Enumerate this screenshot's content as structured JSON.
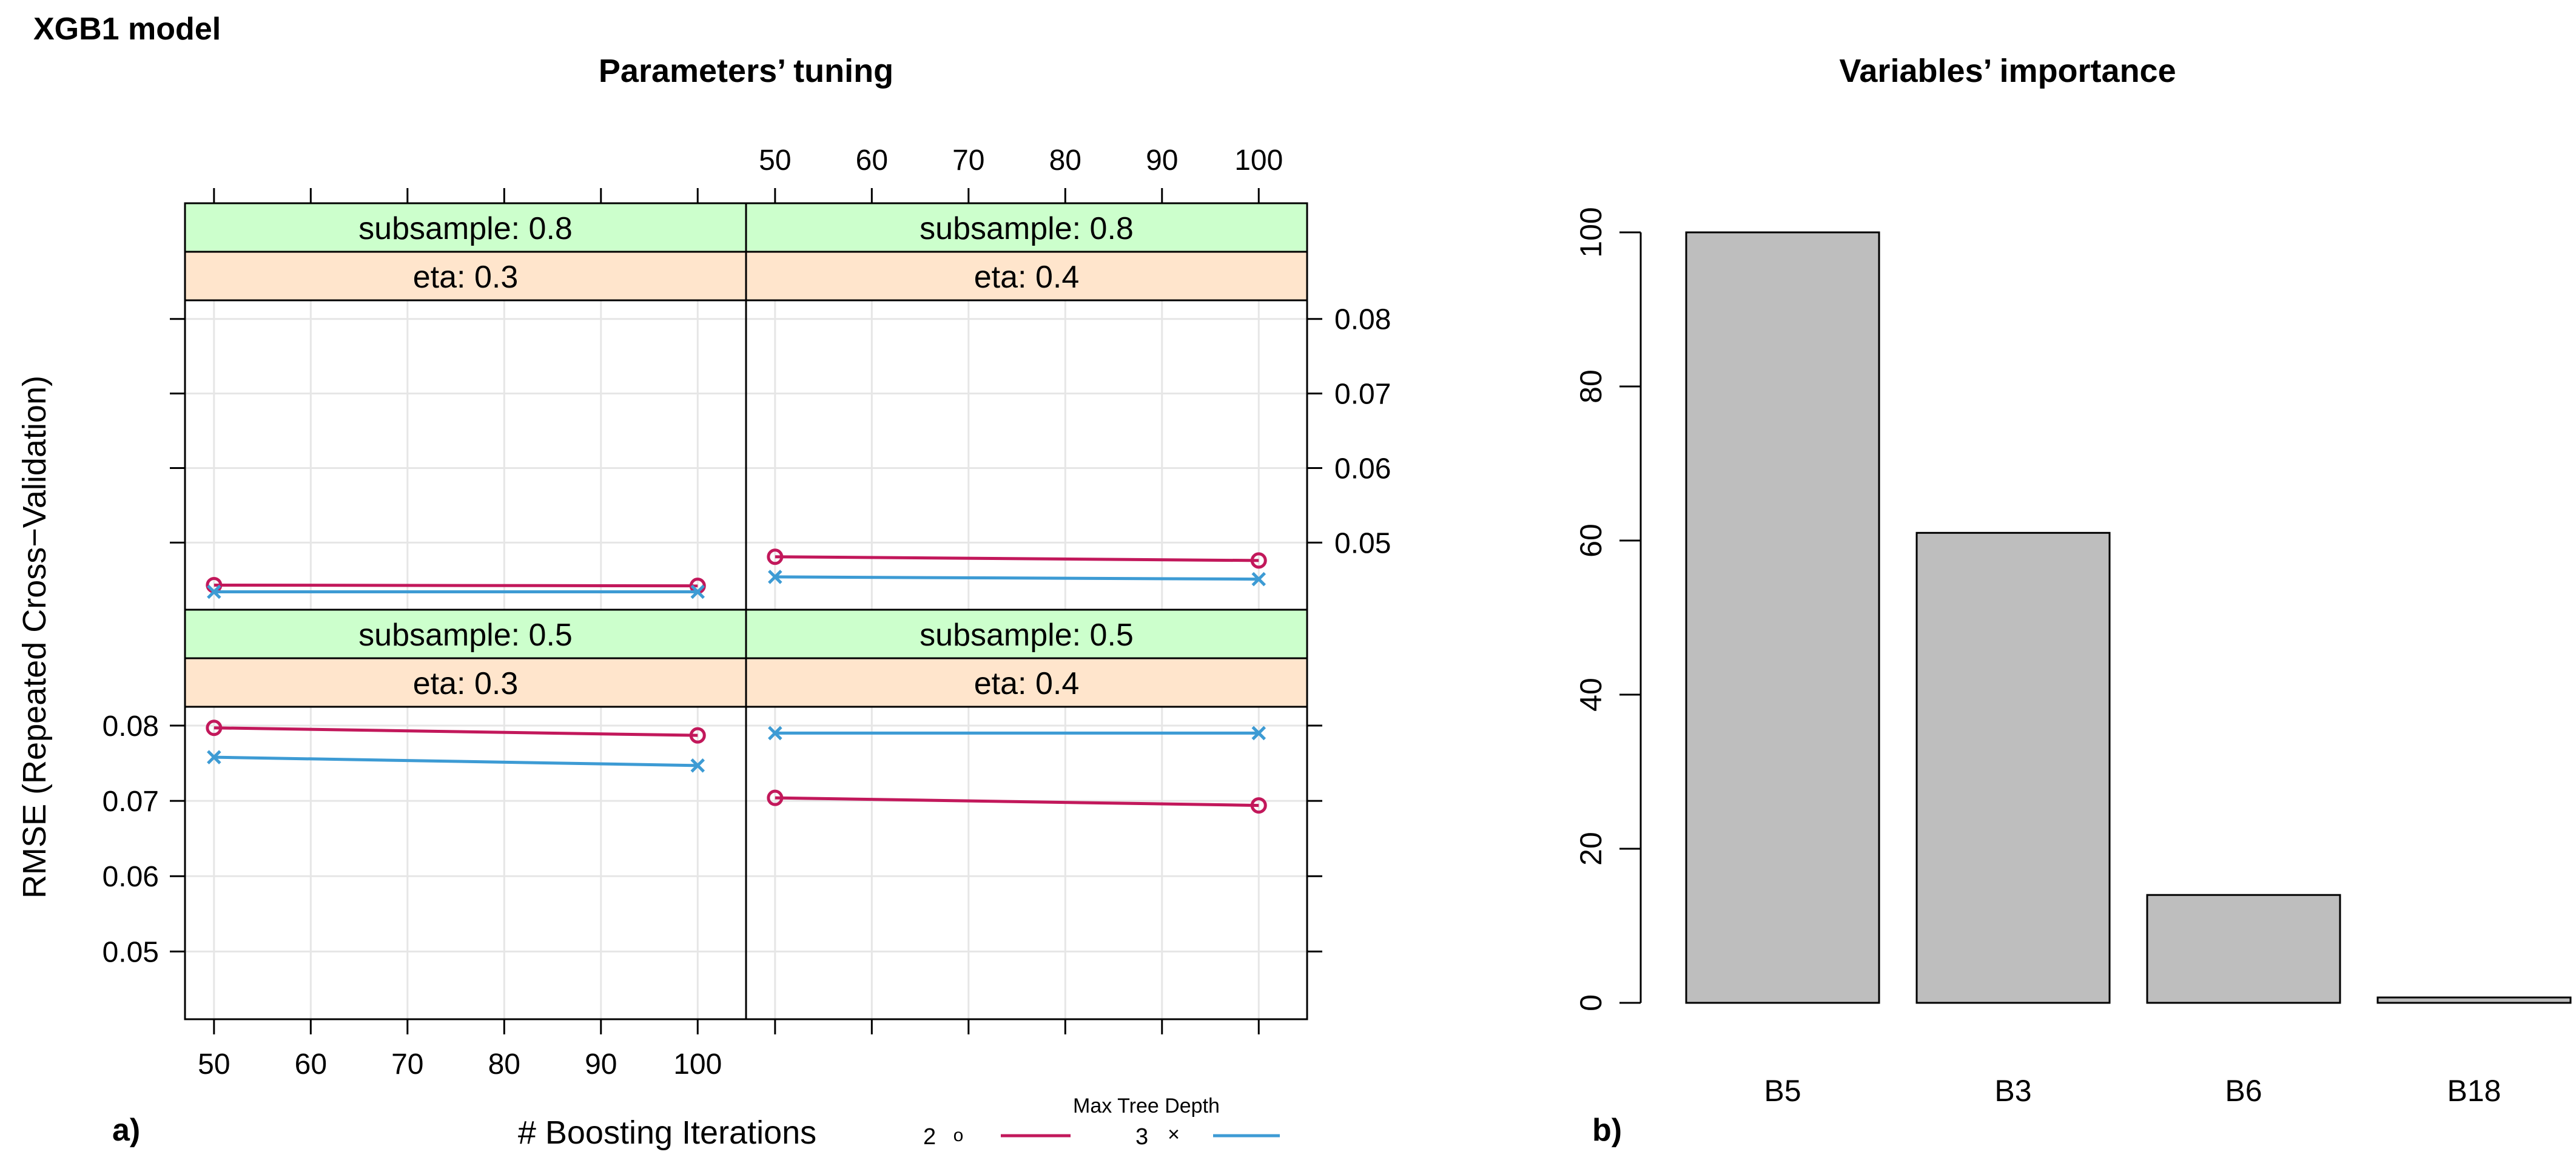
{
  "figure_title": "XGB1 model",
  "panel_a": {
    "label": "a)",
    "title": "Parameters’ tuning",
    "xlabel": "# Boosting Iterations",
    "ylabel": "RMSE (Repeated Cross−Validation)",
    "legend": {
      "title": "Max Tree Depth",
      "entries": [
        {
          "label": "2",
          "marker": "o",
          "color": "#c2185b"
        },
        {
          "label": "3",
          "marker": "×",
          "color": "#3d9bd4"
        }
      ]
    }
  },
  "panel_b": {
    "label": "b)",
    "title": "Variables’ importance"
  },
  "chart_data": [
    {
      "type": "line",
      "title": "Parameters’ tuning",
      "xlabel": "# Boosting Iterations",
      "ylabel": "RMSE (Repeated Cross−Validation)",
      "xlim": [
        47,
        105
      ],
      "ylim": [
        0.041,
        0.0825
      ],
      "xticks": [
        50,
        60,
        70,
        80,
        90,
        100
      ],
      "xtick_labels": [
        "50",
        "60",
        "70",
        "80",
        "90",
        "100"
      ],
      "yticks": [
        0.05,
        0.06,
        0.07,
        0.08
      ],
      "ytick_labels": [
        "0.05",
        "0.06",
        "0.07",
        "0.08"
      ],
      "grid": true,
      "panels": [
        {
          "position": "top-left",
          "strip_top": "subsample: 0.8",
          "strip_bottom": "eta: 0.3",
          "series": [
            {
              "name": "2",
              "x": [
                50,
                100
              ],
              "y": [
                0.0443,
                0.0442
              ]
            },
            {
              "name": "3",
              "x": [
                50,
                100
              ],
              "y": [
                0.0434,
                0.0434
              ]
            }
          ]
        },
        {
          "position": "top-right",
          "strip_top": "subsample: 0.8",
          "strip_bottom": "eta: 0.4",
          "series": [
            {
              "name": "2",
              "x": [
                50,
                100
              ],
              "y": [
                0.0481,
                0.0476
              ]
            },
            {
              "name": "3",
              "x": [
                50,
                100
              ],
              "y": [
                0.0454,
                0.0451
              ]
            }
          ]
        },
        {
          "position": "bottom-left",
          "strip_top": "subsample: 0.5",
          "strip_bottom": "eta: 0.3",
          "series": [
            {
              "name": "2",
              "x": [
                50,
                100
              ],
              "y": [
                0.0797,
                0.0787
              ]
            },
            {
              "name": "3",
              "x": [
                50,
                100
              ],
              "y": [
                0.0758,
                0.0747
              ]
            }
          ]
        },
        {
          "position": "bottom-right",
          "strip_top": "subsample: 0.5",
          "strip_bottom": "eta: 0.4",
          "series": [
            {
              "name": "2",
              "x": [
                50,
                100
              ],
              "y": [
                0.0704,
                0.0694
              ]
            },
            {
              "name": "3",
              "x": [
                50,
                100
              ],
              "y": [
                0.079,
                0.079
              ]
            }
          ]
        }
      ]
    },
    {
      "type": "bar",
      "title": "Variables’ importance",
      "categories": [
        "B5",
        "B3",
        "B6",
        "B18"
      ],
      "values": [
        100,
        61,
        14,
        0.7
      ],
      "ylim": [
        0,
        100
      ],
      "yticks": [
        0,
        20,
        40,
        60,
        80,
        100
      ],
      "ytick_labels": [
        "0",
        "20",
        "40",
        "60",
        "80",
        "100"
      ]
    }
  ]
}
